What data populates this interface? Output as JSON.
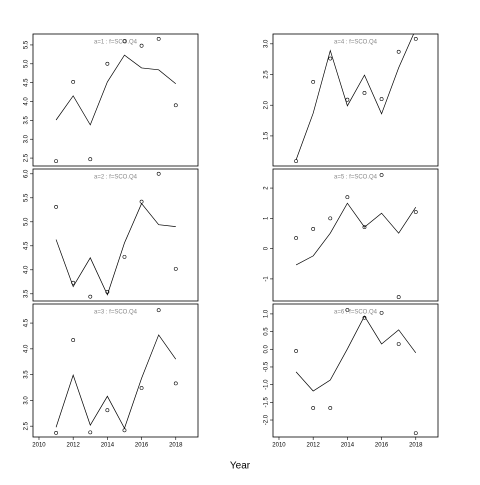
{
  "xlabel": "Year",
  "chart_data": [
    {
      "type": "line",
      "title": "a=1  :  f=SCO.Q4",
      "x": [
        2011,
        2012,
        2013,
        2014,
        2015,
        2016,
        2017,
        2018
      ],
      "series": [
        {
          "style": "points",
          "values": [
            2.42,
            4.52,
            2.47,
            5.0,
            5.6,
            5.48,
            5.66,
            3.9
          ]
        },
        {
          "style": "line",
          "values": [
            3.51,
            4.15,
            3.38,
            4.52,
            5.23,
            4.89,
            4.84,
            4.47
          ]
        }
      ],
      "xlim": [
        2009.65,
        2019.3
      ],
      "ylim": [
        2.29,
        5.79
      ],
      "yticks": [
        {
          "value": 2.5,
          "label": "2.5"
        },
        {
          "value": 3,
          "label": "3.0"
        },
        {
          "value": 3.5,
          "label": "3.5"
        },
        {
          "value": 4,
          "label": "4.0"
        },
        {
          "value": 4.5,
          "label": "4.5"
        },
        {
          "value": 5,
          "label": "5.0"
        },
        {
          "value": 5.5,
          "label": "5.5"
        }
      ]
    },
    {
      "type": "line",
      "title": "a=2  :  f=SCO.Q4",
      "x": [
        2011,
        2012,
        2013,
        2014,
        2015,
        2016,
        2017,
        2018
      ],
      "series": [
        {
          "style": "points",
          "values": [
            5.31,
            3.73,
            3.44,
            3.54,
            4.27,
            5.42,
            6.0,
            4.02
          ]
        },
        {
          "style": "line",
          "values": [
            4.63,
            3.65,
            4.25,
            3.48,
            4.56,
            5.38,
            4.94,
            4.9
          ]
        }
      ],
      "xlim": [
        2009.65,
        2019.3
      ],
      "ylim": [
        3.35,
        6.1
      ],
      "yticks": [
        {
          "value": 3.5,
          "label": "3.5"
        },
        {
          "value": 4,
          "label": "4.0"
        },
        {
          "value": 4.5,
          "label": "4.5"
        },
        {
          "value": 5,
          "label": "5.0"
        },
        {
          "value": 5.5,
          "label": "5.5"
        },
        {
          "value": 6,
          "label": "6.0"
        }
      ]
    },
    {
      "type": "line",
      "title": "a=3  :  f=SCO.Q4",
      "x": [
        2011,
        2012,
        2013,
        2014,
        2015,
        2016,
        2017,
        2018
      ],
      "series": [
        {
          "style": "points",
          "values": [
            2.37,
            4.17,
            2.38,
            2.81,
            2.42,
            3.24,
            4.75,
            3.33
          ]
        },
        {
          "style": "line",
          "values": [
            2.48,
            3.49,
            2.52,
            3.08,
            2.46,
            3.43,
            4.27,
            3.8
          ]
        }
      ],
      "xlim": [
        2009.65,
        2019.3
      ],
      "ylim": [
        2.29,
        4.87
      ],
      "xticks": [
        2010,
        2012,
        2014,
        2016,
        2018
      ],
      "yticks": [
        {
          "value": 2.5,
          "label": "2.5"
        },
        {
          "value": 3,
          "label": "3.0"
        },
        {
          "value": 3.5,
          "label": "3.5"
        },
        {
          "value": 4,
          "label": "4.0"
        },
        {
          "value": 4.5,
          "label": "4.5"
        }
      ]
    },
    {
      "type": "line",
      "title": "a=4  :  f=SCO.Q4",
      "x": [
        2011,
        2012,
        2013,
        2014,
        2015,
        2016,
        2017,
        2018
      ],
      "series": [
        {
          "style": "points",
          "values": [
            1.09,
            2.38,
            2.76,
            2.09,
            2.2,
            2.1,
            2.87,
            3.08
          ]
        },
        {
          "style": "line",
          "values": [
            1.11,
            1.87,
            2.89,
            1.99,
            2.49,
            1.86,
            2.61,
            3.24
          ]
        }
      ],
      "xlim": [
        2009.65,
        2019.3
      ],
      "ylim": [
        1.01,
        3.16
      ],
      "yticks": [
        1.5,
        {
          "value": 2,
          "label": "2.0"
        },
        2.5,
        {
          "value": 3,
          "label": "3.0"
        }
      ]
    },
    {
      "type": "line",
      "title": "a=5  :  f=SCO.Q4",
      "x": [
        2011,
        2012,
        2013,
        2014,
        2015,
        2016,
        2017,
        2018
      ],
      "series": [
        {
          "style": "points",
          "values": [
            0.35,
            0.65,
            1.0,
            1.7,
            0.71,
            2.43,
            -1.6,
            1.21
          ]
        },
        {
          "style": "line",
          "values": [
            -0.54,
            -0.24,
            0.51,
            1.5,
            0.71,
            1.17,
            0.51,
            1.37
          ]
        }
      ],
      "xlim": [
        2009.65,
        2019.3
      ],
      "ylim": [
        -1.73,
        2.63
      ],
      "yticks": [
        -1,
        0,
        1,
        2
      ]
    },
    {
      "type": "line",
      "title": "a=6  :  f=SCO.Q4",
      "x": [
        2011,
        2012,
        2013,
        2014,
        2015,
        2016,
        2017,
        2018
      ],
      "series": [
        {
          "style": "points",
          "values": [
            -0.05,
            -1.66,
            -1.66,
            1.11,
            0.89,
            1.03,
            0.15,
            -2.37
          ]
        },
        {
          "style": "line",
          "values": [
            -0.64,
            -1.18,
            -0.87,
            0.01,
            0.94,
            0.15,
            0.55,
            -0.1
          ]
        }
      ],
      "xlim": [
        2009.65,
        2019.3
      ],
      "ylim": [
        -2.48,
        1.28
      ],
      "xticks": [
        2010,
        2012,
        2014,
        2016,
        2018
      ],
      "yticks": [
        {
          "value": -2,
          "label": "-2.0"
        },
        {
          "value": -1.5,
          "label": "-1.5"
        },
        {
          "value": -1,
          "label": "-1.0"
        },
        {
          "value": -0.5,
          "label": "-0.5"
        },
        {
          "value": 0,
          "label": "0.0"
        },
        {
          "value": 0.5,
          "label": "0.5"
        },
        {
          "value": 1,
          "label": "1.0"
        }
      ]
    }
  ]
}
